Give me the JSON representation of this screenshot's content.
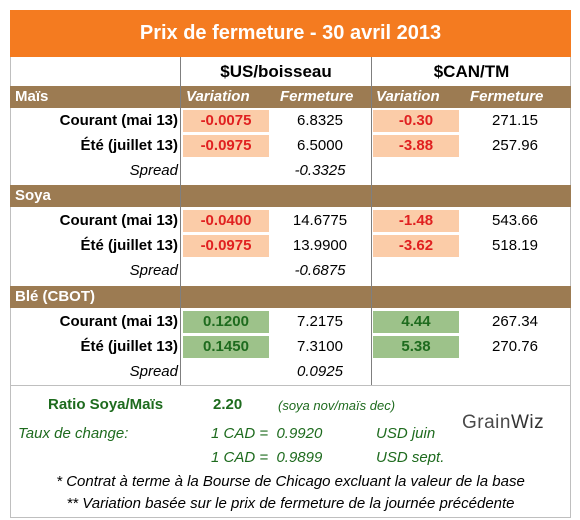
{
  "title": "Prix de fermeture - 30 avril 2013",
  "headers": {
    "usd": "$US/boisseau",
    "cad": "$CAN/TM",
    "variation": "Variation",
    "fermeture": "Fermeture"
  },
  "mais": {
    "label": "Maïs",
    "rows": [
      {
        "label": "Courant (mai 13)",
        "usd_var": "-0.0075",
        "usd_close": "6.8325",
        "cad_var": "-0.30",
        "cad_close": "271.15"
      },
      {
        "label": "Été (juillet 13)",
        "usd_var": "-0.0975",
        "usd_close": "6.5000",
        "cad_var": "-3.88",
        "cad_close": "257.96"
      }
    ],
    "spread_label": "Spread",
    "spread": "-0.3325"
  },
  "soya": {
    "label": "Soya",
    "rows": [
      {
        "label": "Courant (mai 13)",
        "usd_var": "-0.0400",
        "usd_close": "14.6775",
        "cad_var": "-1.48",
        "cad_close": "543.66"
      },
      {
        "label": "Été (juillet 13)",
        "usd_var": "-0.0975",
        "usd_close": "13.9900",
        "cad_var": "-3.62",
        "cad_close": "518.19"
      }
    ],
    "spread_label": "Spread",
    "spread": "-0.6875"
  },
  "ble": {
    "label": "Blé (CBOT)",
    "rows": [
      {
        "label": "Courant (mai 13)",
        "usd_var": "0.1200",
        "usd_close": "7.2175",
        "cad_var": "4.44",
        "cad_close": "267.34"
      },
      {
        "label": "Été (juillet 13)",
        "usd_var": "0.1450",
        "usd_close": "7.3100",
        "cad_var": "5.38",
        "cad_close": "270.76"
      }
    ],
    "spread_label": "Spread",
    "spread": "0.0925"
  },
  "ratio": {
    "label": "Ratio Soya/Maïs",
    "value": "2.20",
    "note": "(soya nov/maïs dec)"
  },
  "exchange": {
    "label": "Taux de change:",
    "line1": "1 CAD =  0.9920",
    "line1_unit": "USD juin",
    "line2": "1 CAD =  0.9899",
    "line2_unit": "USD sept."
  },
  "footnotes": {
    "f1": "* Contrat à terme à la Bourse de Chicago excluant la valeur de la base",
    "f2": "** Variation basée sur le prix de fermeture de la journée précédente"
  },
  "logo": {
    "part1": "Grain",
    "part2": "Wiz"
  },
  "colors": {
    "orange": "#f47b20",
    "brown": "#9c7b52",
    "red": "#e02020",
    "green": "#1e6b1e",
    "peach": "#fbcca8",
    "lightgreen": "#9dc28a"
  }
}
